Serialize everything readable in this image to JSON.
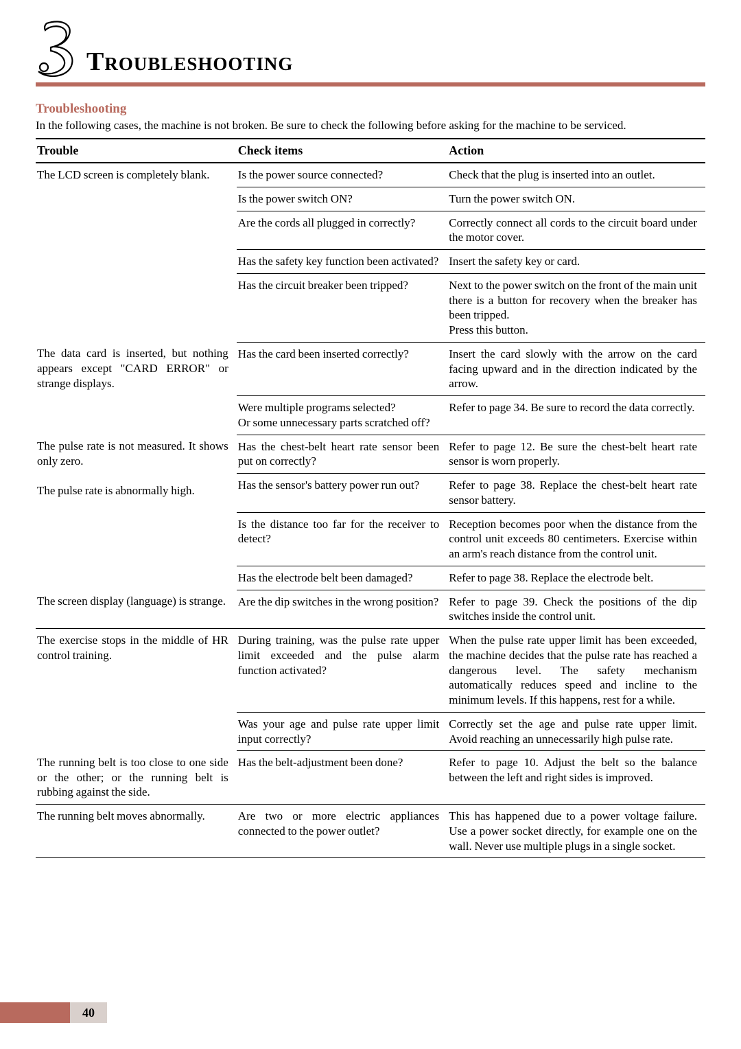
{
  "chapter": {
    "number_glyph": "3",
    "title": "Troubleshooting",
    "accent_color": "#b86a5e",
    "footer_fill": "#d9d0cc"
  },
  "section": {
    "title": "Troubleshooting",
    "intro": "In the following cases, the machine is not broken. Be sure to check the following before asking for the machine to be serviced."
  },
  "table": {
    "headers": {
      "c1": "Trouble",
      "c2": "Check items",
      "c3": "Action"
    },
    "groups": [
      {
        "trouble": "The LCD screen is completely blank.",
        "rows": [
          {
            "check": "Is the power source connected?",
            "action": "Check that the plug is inserted into an outlet."
          },
          {
            "check": "Is the power switch ON?",
            "action": "Turn the power switch ON."
          },
          {
            "check": "Are the cords all plugged in correctly?",
            "action": "Correctly connect all cords to the circuit board under the motor cover."
          },
          {
            "check": "Has the safety key function been activated?",
            "action": "Insert the safety key or card."
          },
          {
            "check": "Has the circuit breaker been tripped?",
            "action": "Next to the power switch on the front of the main unit there is a button for recovery when the breaker has been tripped.\nPress this button."
          }
        ]
      },
      {
        "trouble": "The data card is inserted, but nothing appears except \"CARD ERROR\" or strange displays.",
        "rows": [
          {
            "check": "Has the card been inserted correctly?",
            "action": "Insert the card slowly with the arrow on the card facing upward and in the direction indicated by the arrow."
          },
          {
            "check": "Were multiple programs selected?\nOr some unnecessary parts scratched off?",
            "action": "Refer to page 34. Be sure to record the data correctly."
          }
        ]
      },
      {
        "trouble": "The pulse rate is not measured. It shows only zero.\n\nThe pulse rate is abnormally high.",
        "rows": [
          {
            "check": "Has the chest-belt heart rate sensor been put on correctly?",
            "action": "Refer to page 12. Be sure the chest-belt heart rate sensor is worn properly."
          },
          {
            "check": "Has the sensor's battery power run out?",
            "action": "Refer to page 38. Replace the chest-belt heart rate sensor battery."
          },
          {
            "check": "Is the distance too far for the receiver to detect?",
            "action": "Reception becomes poor when the distance from the control unit exceeds 80 centimeters. Exercise within an arm's reach distance from the control unit."
          },
          {
            "check": "Has the electrode belt been damaged?",
            "action": "Refer to page 38. Replace the electrode belt."
          }
        ]
      },
      {
        "trouble": "The screen display (language) is strange.",
        "rows": [
          {
            "check": "Are the dip switches in the wrong position?",
            "action": "Refer to page 39. Check the positions of the dip switches inside the control unit."
          }
        ]
      },
      {
        "trouble": "The exercise stops in the middle of HR control training.",
        "rows": [
          {
            "check": "During training, was the pulse rate upper limit exceeded and the pulse alarm function activated?",
            "action": "When the pulse rate upper limit has been exceeded, the machine decides that the pulse rate has reached a dangerous level. The safety mechanism automatically reduces speed and incline to the minimum levels. If this happens, rest for a while."
          },
          {
            "check": "Was your age and pulse rate upper limit input correctly?",
            "action": "Correctly set the age and pulse rate upper limit. Avoid reaching an unnecessarily high pulse rate."
          }
        ]
      },
      {
        "trouble": "The running belt is too close to one side or the other; or the running belt is rubbing against the side.",
        "rows": [
          {
            "check": "Has the belt-adjustment been done?",
            "action": "Refer to page 10. Adjust the belt so the balance between the left and right sides is improved."
          }
        ]
      },
      {
        "trouble": "The running belt moves abnormally.",
        "rows": [
          {
            "check": "Are two or more electric appliances connected to the power outlet?",
            "action": "This has happened due to a power voltage failure. Use a power socket directly, for example one on the wall. Never use multiple plugs in a single socket."
          }
        ]
      }
    ]
  },
  "page_number": "40"
}
